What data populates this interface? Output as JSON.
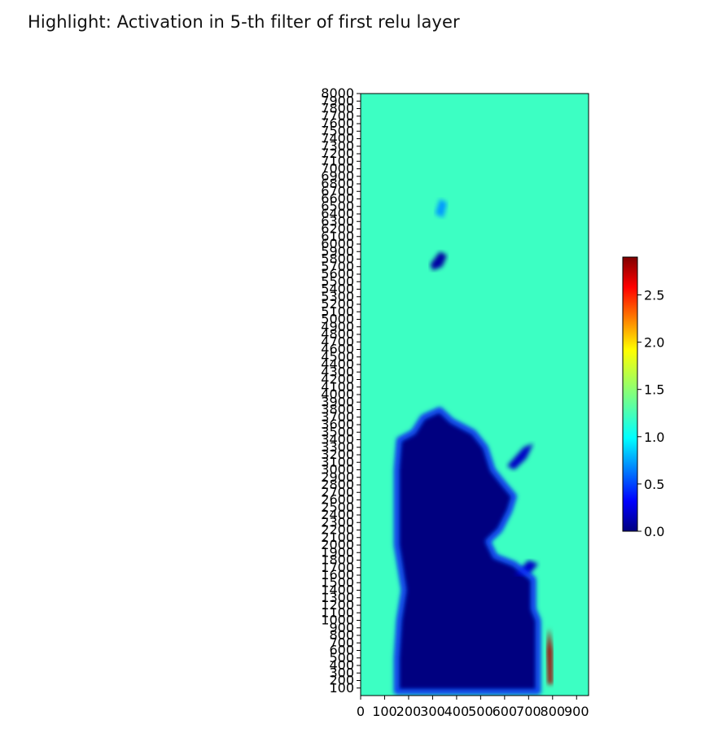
{
  "title": "Highlight: Activation in 5-th filter of first relu layer",
  "chart_data": {
    "type": "heatmap",
    "colormap": "jet",
    "background_value": 1.35,
    "background_color": "#3cffc3",
    "x_ticks": [
      "0",
      "100",
      "200",
      "300",
      "400",
      "500",
      "600",
      "700",
      "800",
      "900"
    ],
    "x_tick_values": [
      0,
      100,
      200,
      300,
      400,
      500,
      600,
      700,
      800,
      900
    ],
    "xlim": [
      0,
      950
    ],
    "y_ticks": [
      "100",
      "200",
      "300",
      "400",
      "500",
      "600",
      "700",
      "800",
      "900",
      "1000",
      "1100",
      "1200",
      "1300",
      "1400",
      "1500",
      "1600",
      "1700",
      "1800",
      "1900",
      "2000",
      "2100",
      "2200",
      "2300",
      "2400",
      "2500",
      "2600",
      "2700",
      "2800",
      "2900",
      "3000",
      "3100",
      "3200",
      "3300",
      "3400",
      "3500",
      "3600",
      "3700",
      "3800",
      "3900",
      "4000",
      "4100",
      "4200",
      "4300",
      "4400",
      "4500",
      "4600",
      "4700",
      "4800",
      "4900",
      "5000",
      "5100",
      "5200",
      "5300",
      "5400",
      "5500",
      "5600",
      "5700",
      "5800",
      "5900",
      "6000",
      "6100",
      "6200",
      "6300",
      "6400",
      "6500",
      "6600",
      "6700",
      "6800",
      "6900",
      "7000",
      "7100",
      "7200",
      "7300",
      "7400",
      "7500",
      "7600",
      "7700",
      "7800",
      "7900",
      "8000"
    ],
    "ylim": [
      0,
      8000
    ],
    "colorbar": {
      "min": 0.0,
      "max": 2.9,
      "ticks": [
        "0.0",
        "0.5",
        "1.0",
        "1.5",
        "2.0",
        "2.5"
      ],
      "tick_values": [
        0.0,
        0.5,
        1.0,
        1.5,
        2.0,
        2.5
      ]
    },
    "regions": [
      {
        "label": "low-activation body",
        "value": 0.0,
        "polygon_data": [
          [
            150,
            50
          ],
          [
            740,
            50
          ],
          [
            740,
            1000
          ],
          [
            720,
            1150
          ],
          [
            720,
            1550
          ],
          [
            640,
            1750
          ],
          [
            560,
            1850
          ],
          [
            530,
            2050
          ],
          [
            580,
            2200
          ],
          [
            620,
            2450
          ],
          [
            640,
            2650
          ],
          [
            600,
            2800
          ],
          [
            550,
            3000
          ],
          [
            520,
            3300
          ],
          [
            470,
            3500
          ],
          [
            380,
            3650
          ],
          [
            330,
            3800
          ],
          [
            260,
            3700
          ],
          [
            220,
            3500
          ],
          [
            160,
            3400
          ],
          [
            150,
            3000
          ],
          [
            150,
            2000
          ],
          [
            160,
            1800
          ],
          [
            180,
            1400
          ],
          [
            160,
            1000
          ],
          [
            150,
            500
          ]
        ]
      },
      {
        "label": "upper blob",
        "value": 0.1,
        "polygon_data": [
          [
            290,
            5730
          ],
          [
            330,
            5900
          ],
          [
            360,
            5850
          ],
          [
            340,
            5700
          ],
          [
            300,
            5650
          ]
        ]
      },
      {
        "label": "top faint blob",
        "value": 0.8,
        "polygon_data": [
          [
            310,
            6400
          ],
          [
            330,
            6600
          ],
          [
            360,
            6550
          ],
          [
            345,
            6350
          ]
        ]
      },
      {
        "label": "right arm",
        "value": 0.2,
        "polygon_data": [
          [
            610,
            3050
          ],
          [
            680,
            3300
          ],
          [
            720,
            3350
          ],
          [
            690,
            3150
          ],
          [
            640,
            3000
          ]
        ]
      },
      {
        "label": "lower right arm",
        "value": 0.2,
        "polygon_data": [
          [
            640,
            1600
          ],
          [
            700,
            1800
          ],
          [
            740,
            1750
          ],
          [
            700,
            1600
          ]
        ]
      },
      {
        "label": "hot edge",
        "value": 2.8,
        "polygon_data": [
          [
            780,
            150
          ],
          [
            800,
            150
          ],
          [
            800,
            600
          ],
          [
            785,
            900
          ],
          [
            775,
            600
          ]
        ]
      }
    ]
  }
}
